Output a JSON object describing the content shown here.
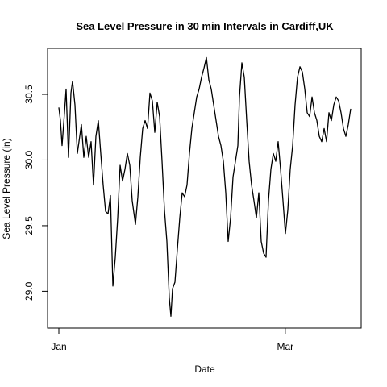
{
  "chart_data": {
    "type": "line",
    "title": "Sea Level Pressure in 30 min Intervals in Cardiff,UK",
    "x_label": "Date",
    "y_label": "Sea Level Pressure (in)",
    "x": [
      0,
      0.42,
      0.84,
      1.47,
      1.89,
      2.52,
      3.15,
      3.57,
      4.2,
      4.83,
      5.25,
      5.88,
      6.51,
      7.14,
      7.77,
      8.4,
      9.03,
      9.66,
      10.29,
      10.92,
      11.55,
      12.18,
      12.82,
      13.45,
      14.08,
      14.71,
      15.34,
      15.97,
      16.6,
      17.23,
      17.86,
      18.49,
      19.12,
      19.96,
      20.59,
      21.22,
      21.85,
      22.48,
      23.11,
      23.74,
      24.37,
      25,
      25.63,
      26.26,
      26.89,
      27.52,
      28.15,
      28.78,
      29.2,
      29.62,
      30.25,
      30.88,
      31.51,
      32.14,
      32.77,
      33.4,
      34.03,
      34.66,
      35.29,
      35.92,
      36.55,
      37.18,
      37.82,
      38.45,
      39.08,
      39.71,
      40.34,
      40.97,
      41.6,
      42.23,
      42.86,
      43.49,
      44.12,
      44.75,
      45.38,
      46.01,
      46.64,
      47.06,
      47.69,
      48.32,
      48.95,
      49.58,
      50.21,
      50.84,
      51.47,
      52.1,
      52.73,
      53.36,
      53.99,
      54.62,
      55.25,
      55.88,
      56.51,
      57.14,
      57.77,
      58.4,
      59.03,
      59.66,
      60.29,
      60.92,
      61.55,
      62.18,
      62.82,
      63.45,
      64.08,
      64.71,
      65.34,
      65.97,
      66.6,
      67.23,
      67.86,
      68.49,
      69.12,
      69.75,
      70.38,
      71.01,
      71.64,
      72.27,
      72.9,
      73.53,
      74.16,
      74.79,
      75.42,
      76.05
    ],
    "series": [
      {
        "name": "Sea Level Pressure",
        "color": "#000000",
        "values": [
          30.4,
          30.3,
          30.11,
          30.36,
          30.54,
          30.02,
          30.51,
          30.6,
          30.42,
          30.05,
          30.14,
          30.27,
          30.02,
          30.18,
          30.02,
          30.14,
          29.81,
          30.18,
          30.3,
          30.05,
          29.81,
          29.61,
          29.59,
          29.73,
          29.04,
          29.26,
          29.56,
          29.96,
          29.84,
          29.93,
          30.05,
          29.96,
          29.69,
          29.51,
          29.72,
          30.02,
          30.24,
          30.3,
          30.24,
          30.51,
          30.45,
          30.21,
          30.44,
          30.33,
          29.99,
          29.62,
          29.38,
          28.95,
          28.81,
          29.02,
          29.07,
          29.32,
          29.56,
          29.75,
          29.72,
          29.81,
          30.05,
          30.24,
          30.36,
          30.48,
          30.54,
          30.63,
          30.7,
          30.78,
          30.61,
          30.54,
          30.42,
          30.3,
          30.18,
          30.11,
          29.99,
          29.75,
          29.38,
          29.56,
          29.87,
          29.99,
          30.11,
          30.48,
          30.74,
          30.63,
          30.3,
          29.99,
          29.81,
          29.69,
          29.56,
          29.75,
          29.38,
          29.29,
          29.26,
          29.69,
          29.93,
          30.05,
          29.99,
          30.14,
          29.93,
          29.69,
          29.44,
          29.62,
          29.93,
          30.11,
          30.42,
          30.63,
          30.71,
          30.67,
          30.54,
          30.36,
          30.33,
          30.48,
          30.36,
          30.3,
          30.18,
          30.14,
          30.24,
          30.14,
          30.36,
          30.3,
          30.42,
          30.48,
          30.45,
          30.36,
          30.24,
          30.18,
          30.27,
          30.39
        ]
      }
    ],
    "xlim": [
      -2.94,
      78.78
    ],
    "xticks": [
      {
        "value": 0,
        "label": "Jan"
      },
      {
        "value": 59,
        "label": "Mar"
      }
    ],
    "ylim": [
      28.72,
      30.85
    ],
    "yticks": [
      {
        "value": 29.0,
        "label": "29.0"
      },
      {
        "value": 29.5,
        "label": "29.5"
      },
      {
        "value": 30.0,
        "label": "30.0"
      },
      {
        "value": 30.5,
        "label": "30.5"
      }
    ]
  }
}
